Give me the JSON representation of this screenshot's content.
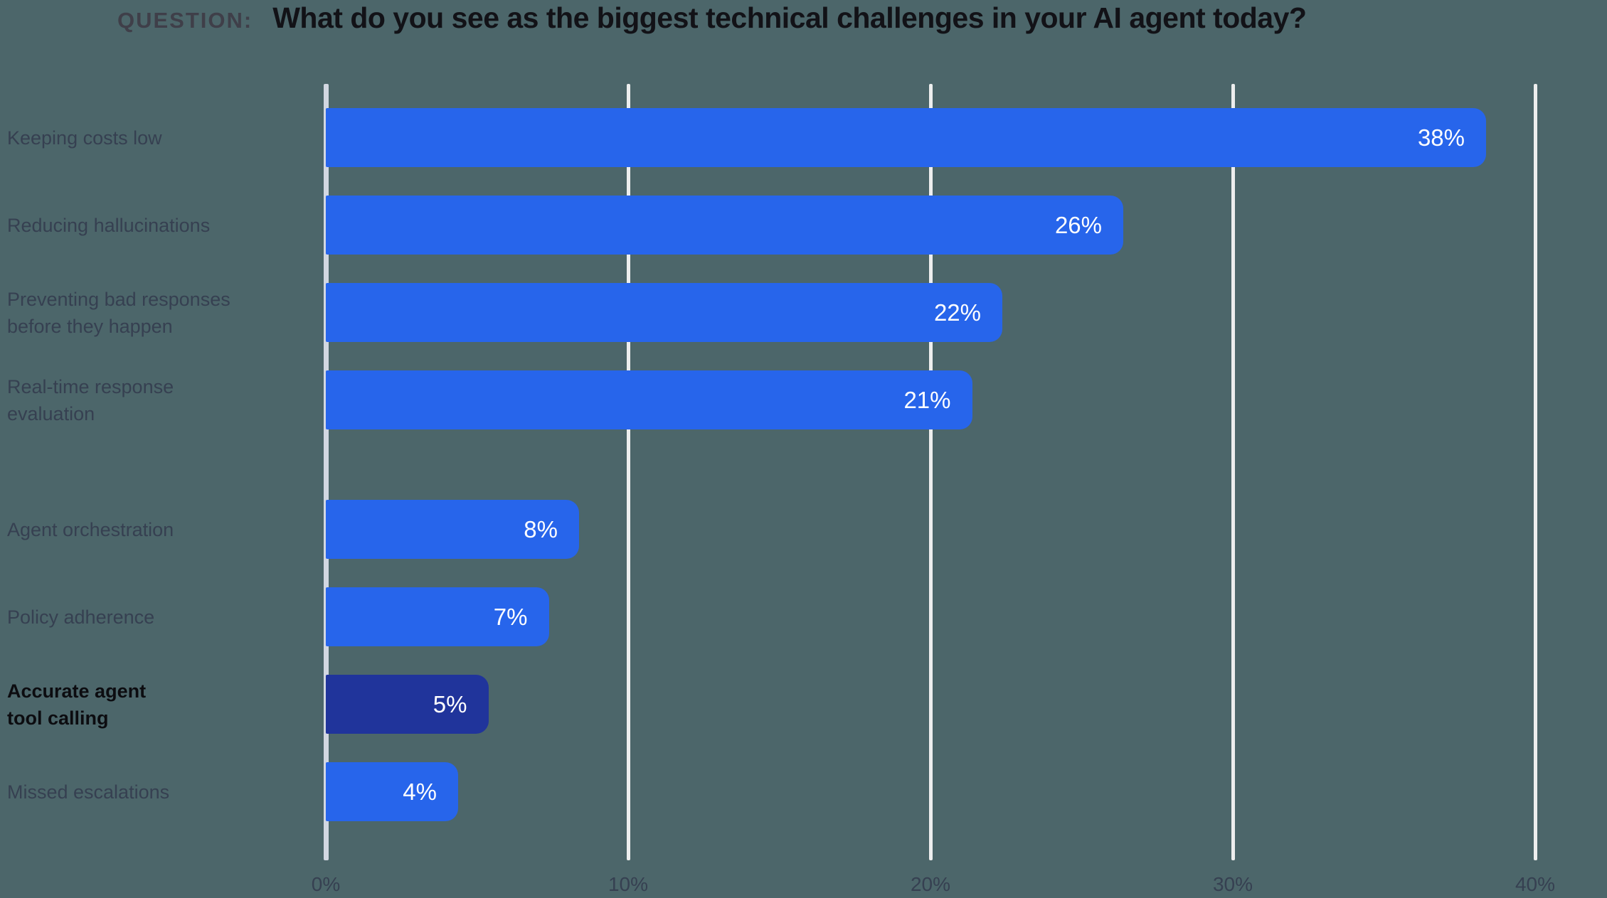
{
  "header": {
    "label": "QUESTION:",
    "question": "What do you see as the biggest technical challenges in your AI agent today?"
  },
  "colors": {
    "background": "#4C666A",
    "bar": "#2765EB",
    "bar_highlight": "#20349B",
    "bar_value_text": "#FFFFFF",
    "gridline": "#EDEEEE",
    "axis_line": "#D2D7E1",
    "question_text": "#121217",
    "question_label": "#3F3F49",
    "muted_label": "rgba(36,32,60,0.55)",
    "highlight_label": "#0C0C10"
  },
  "chart_data": {
    "type": "bar",
    "orientation": "horizontal",
    "title": "What do you see as the biggest technical challenges in your AI agent today?",
    "xlabel": "",
    "ylabel": "",
    "xlim": [
      0,
      40
    ],
    "x_ticks": [
      "0%",
      "10%",
      "20%",
      "30%",
      "40%"
    ],
    "grid": "vertical-gridlines-on",
    "legend": "none",
    "categories": [
      "Keeping costs low",
      "Reducing hallucinations",
      "Preventing bad responses before they happen",
      "Real-time response evaluation",
      "Agent orchestration",
      "Policy adherence",
      "Accurate agent tool calling",
      "Missed escalations"
    ],
    "values": [
      38,
      26,
      22,
      21,
      8,
      7,
      5,
      4
    ],
    "highlighted_category": "Accurate agent tool calling",
    "bars": [
      {
        "label": "Keeping costs low",
        "value": 38,
        "display": "38%",
        "group": 0,
        "highlight": false
      },
      {
        "label": "Reducing hallucinations",
        "value": 26,
        "display": "26%",
        "group": 0,
        "highlight": false
      },
      {
        "label": "Preventing bad responses\nbefore they happen",
        "value": 22,
        "display": "22%",
        "group": 0,
        "highlight": false
      },
      {
        "label": "Real-time response\nevaluation",
        "value": 21,
        "display": "21%",
        "group": 0,
        "highlight": false
      },
      {
        "label": "Agent orchestration",
        "value": 8,
        "display": "8%",
        "group": 1,
        "highlight": false
      },
      {
        "label": "Policy adherence",
        "value": 7,
        "display": "7%",
        "group": 1,
        "highlight": false
      },
      {
        "label": "Accurate agent\ntool calling",
        "value": 5,
        "display": "5%",
        "group": 1,
        "highlight": true
      },
      {
        "label": "Missed escalations",
        "value": 4,
        "display": "4%",
        "group": 1,
        "highlight": false
      }
    ]
  }
}
